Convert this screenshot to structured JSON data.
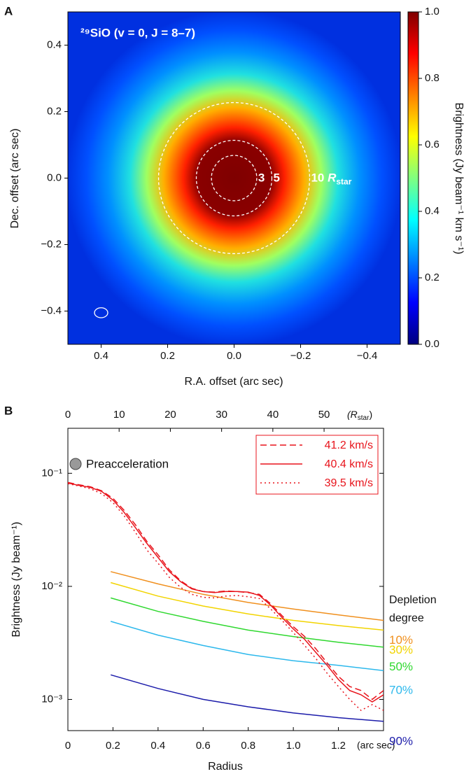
{
  "chart_data": [
    {
      "type": "heatmap",
      "panel": "A",
      "title": "²⁹SiO (v = 0, J = 8–7)",
      "xlabel": "R.A. offset (arc sec)",
      "ylabel": "Dec. offset (arc sec)",
      "xlim": [
        0.5,
        -0.5
      ],
      "ylim": [
        -0.5,
        0.5
      ],
      "xticks": [
        {
          "value": 0.4,
          "label": "0.4"
        },
        {
          "value": 0.2,
          "label": "0.2"
        },
        {
          "value": 0,
          "label": "0.0"
        },
        {
          "value": -0.2,
          "label": "−0.2"
        },
        {
          "value": -0.4,
          "label": "−0.4"
        }
      ],
      "yticks": [
        {
          "value": -0.4,
          "label": "−0.4"
        },
        {
          "value": -0.2,
          "label": "−0.2"
        },
        {
          "value": 0,
          "label": "0.0"
        },
        {
          "value": 0.2,
          "label": "0.2"
        },
        {
          "value": 0.4,
          "label": "0.4"
        }
      ],
      "colorbar": {
        "label": "Brightness (Jy beam⁻¹ km s⁻¹)",
        "lim": [
          0,
          1
        ],
        "ticks": [
          {
            "value": 0,
            "label": "0.0"
          },
          {
            "value": 0.2,
            "label": "0.2"
          },
          {
            "value": 0.4,
            "label": "0.4"
          },
          {
            "value": 0.6,
            "label": "0.6"
          },
          {
            "value": 0.8,
            "label": "0.8"
          },
          {
            "value": 1,
            "label": "1.0"
          }
        ]
      },
      "colormap": [
        "#00007f",
        "#0000ff",
        "#0080ff",
        "#00ffff",
        "#80ff80",
        "#ffff00",
        "#ff8000",
        "#ff0000",
        "#7f0000"
      ],
      "circles": [
        {
          "value": 3,
          "label": "3"
        },
        {
          "value": 5,
          "label": "5"
        },
        {
          "value": 10,
          "label": "10 R",
          "subscript": "star"
        }
      ],
      "beam": {
        "x": 0.4,
        "y": -0.405,
        "width": 0.04,
        "height": 0.03
      }
    },
    {
      "type": "line",
      "panel": "B",
      "xlabel": "Radius",
      "xunit": "(arc sec)",
      "ylabel": "Brightness (Jy beam⁻¹)",
      "x2unit": {
        "text": "(R",
        "subscript": "star",
        "suffix": ")"
      },
      "log_y": true,
      "xlim": [
        0,
        1.4
      ],
      "x2lim": [
        0,
        61.6
      ],
      "ylim": [
        0.00053,
        0.25
      ],
      "xticks": [
        0,
        {
          "value": 0.2,
          "label": "0.2"
        },
        {
          "value": 0.4,
          "label": "0.4"
        },
        {
          "value": 0.6,
          "label": "0.6"
        },
        {
          "value": 0.8,
          "label": "0.8"
        },
        {
          "value": 1,
          "label": "1.0"
        },
        {
          "value": 1.2,
          "label": "1.2"
        }
      ],
      "x2ticks": [
        0,
        10,
        20,
        30,
        40,
        50
      ],
      "yticks": [
        {
          "value": 0.001,
          "label": "10⁻³"
        },
        {
          "value": 0.01,
          "label": "10⁻²"
        },
        {
          "value": 0.1,
          "label": "10⁻¹"
        }
      ],
      "annotation": "Preacceleration",
      "series": [
        {
          "name": "41.2 km/s",
          "color": "#e8141c",
          "dash": "dashed",
          "x": [
            0,
            0.05,
            0.1,
            0.15,
            0.2,
            0.25,
            0.3,
            0.35,
            0.4,
            0.45,
            0.5,
            0.55,
            0.6,
            0.65,
            0.7,
            0.75,
            0.8,
            0.85,
            0.9,
            0.95,
            1.0,
            1.05,
            1.1,
            1.15,
            1.2,
            1.25,
            1.3,
            1.35,
            1.4
          ],
          "values": [
            0.083,
            0.079,
            0.076,
            0.07,
            0.06,
            0.047,
            0.035,
            0.025,
            0.019,
            0.014,
            0.0112,
            0.0096,
            0.009,
            0.0089,
            0.0091,
            0.009,
            0.0088,
            0.0085,
            0.007,
            0.0055,
            0.0044,
            0.0036,
            0.0028,
            0.0021,
            0.0016,
            0.0013,
            0.0012,
            0.001,
            0.0012
          ]
        },
        {
          "name": "40.4 km/s",
          "color": "#e8141c",
          "dash": "solid",
          "x": [
            0,
            0.05,
            0.1,
            0.15,
            0.2,
            0.25,
            0.3,
            0.35,
            0.4,
            0.45,
            0.5,
            0.55,
            0.6,
            0.65,
            0.7,
            0.75,
            0.8,
            0.85,
            0.9,
            0.95,
            1.0,
            1.05,
            1.1,
            1.15,
            1.2,
            1.25,
            1.3,
            1.35,
            1.4
          ],
          "values": [
            0.082,
            0.078,
            0.075,
            0.069,
            0.058,
            0.045,
            0.033,
            0.024,
            0.018,
            0.0135,
            0.011,
            0.0095,
            0.009,
            0.0088,
            0.009,
            0.009,
            0.0089,
            0.0083,
            0.0068,
            0.0053,
            0.0042,
            0.0034,
            0.0026,
            0.002,
            0.0015,
            0.0012,
            0.0011,
            0.00095,
            0.0011
          ]
        },
        {
          "name": "39.5 km/s",
          "color": "#e8141c",
          "dash": "dotted",
          "x": [
            0,
            0.05,
            0.1,
            0.15,
            0.2,
            0.25,
            0.3,
            0.35,
            0.4,
            0.45,
            0.5,
            0.55,
            0.6,
            0.65,
            0.7,
            0.75,
            0.8,
            0.85,
            0.9,
            0.95,
            1.0,
            1.05,
            1.1,
            1.15,
            1.2,
            1.25,
            1.3,
            1.35,
            1.4
          ],
          "values": [
            0.081,
            0.077,
            0.073,
            0.066,
            0.055,
            0.042,
            0.03,
            0.021,
            0.016,
            0.012,
            0.0098,
            0.0085,
            0.008,
            0.0079,
            0.0082,
            0.0083,
            0.0081,
            0.0078,
            0.0063,
            0.005,
            0.0039,
            0.003,
            0.0023,
            0.0017,
            0.0013,
            0.001,
            0.0008,
            0.0009,
            0.0008
          ]
        }
      ],
      "model_title": [
        "Depletion",
        "degree"
      ],
      "model_series": [
        {
          "name": "10%",
          "color": "#f0901e",
          "x": [
            0.19,
            0.4,
            0.6,
            0.8,
            1.0,
            1.2,
            1.4
          ],
          "values": [
            0.0135,
            0.0105,
            0.0085,
            0.0072,
            0.0063,
            0.0056,
            0.005
          ]
        },
        {
          "name": "30%",
          "color": "#f2d400",
          "x": [
            0.19,
            0.4,
            0.6,
            0.8,
            1.0,
            1.2,
            1.4
          ],
          "values": [
            0.0108,
            0.0082,
            0.0067,
            0.0057,
            0.005,
            0.0045,
            0.0041
          ]
        },
        {
          "name": "50%",
          "color": "#2fd82f",
          "x": [
            0.19,
            0.4,
            0.6,
            0.8,
            1.0,
            1.2,
            1.4
          ],
          "values": [
            0.0079,
            0.006,
            0.0049,
            0.0041,
            0.0036,
            0.0032,
            0.0029
          ]
        },
        {
          "name": "70%",
          "color": "#2cb8ec",
          "x": [
            0.19,
            0.4,
            0.6,
            0.8,
            1.0,
            1.2,
            1.4
          ],
          "values": [
            0.0049,
            0.0037,
            0.003,
            0.0025,
            0.0022,
            0.002,
            0.0018
          ]
        },
        {
          "name": "90%",
          "color": "#1c1caa",
          "x": [
            0.19,
            0.4,
            0.6,
            0.8,
            1.0,
            1.2,
            1.4
          ],
          "values": [
            0.00165,
            0.00125,
            0.001,
            0.00086,
            0.00076,
            0.00069,
            0.00064
          ]
        }
      ]
    }
  ]
}
